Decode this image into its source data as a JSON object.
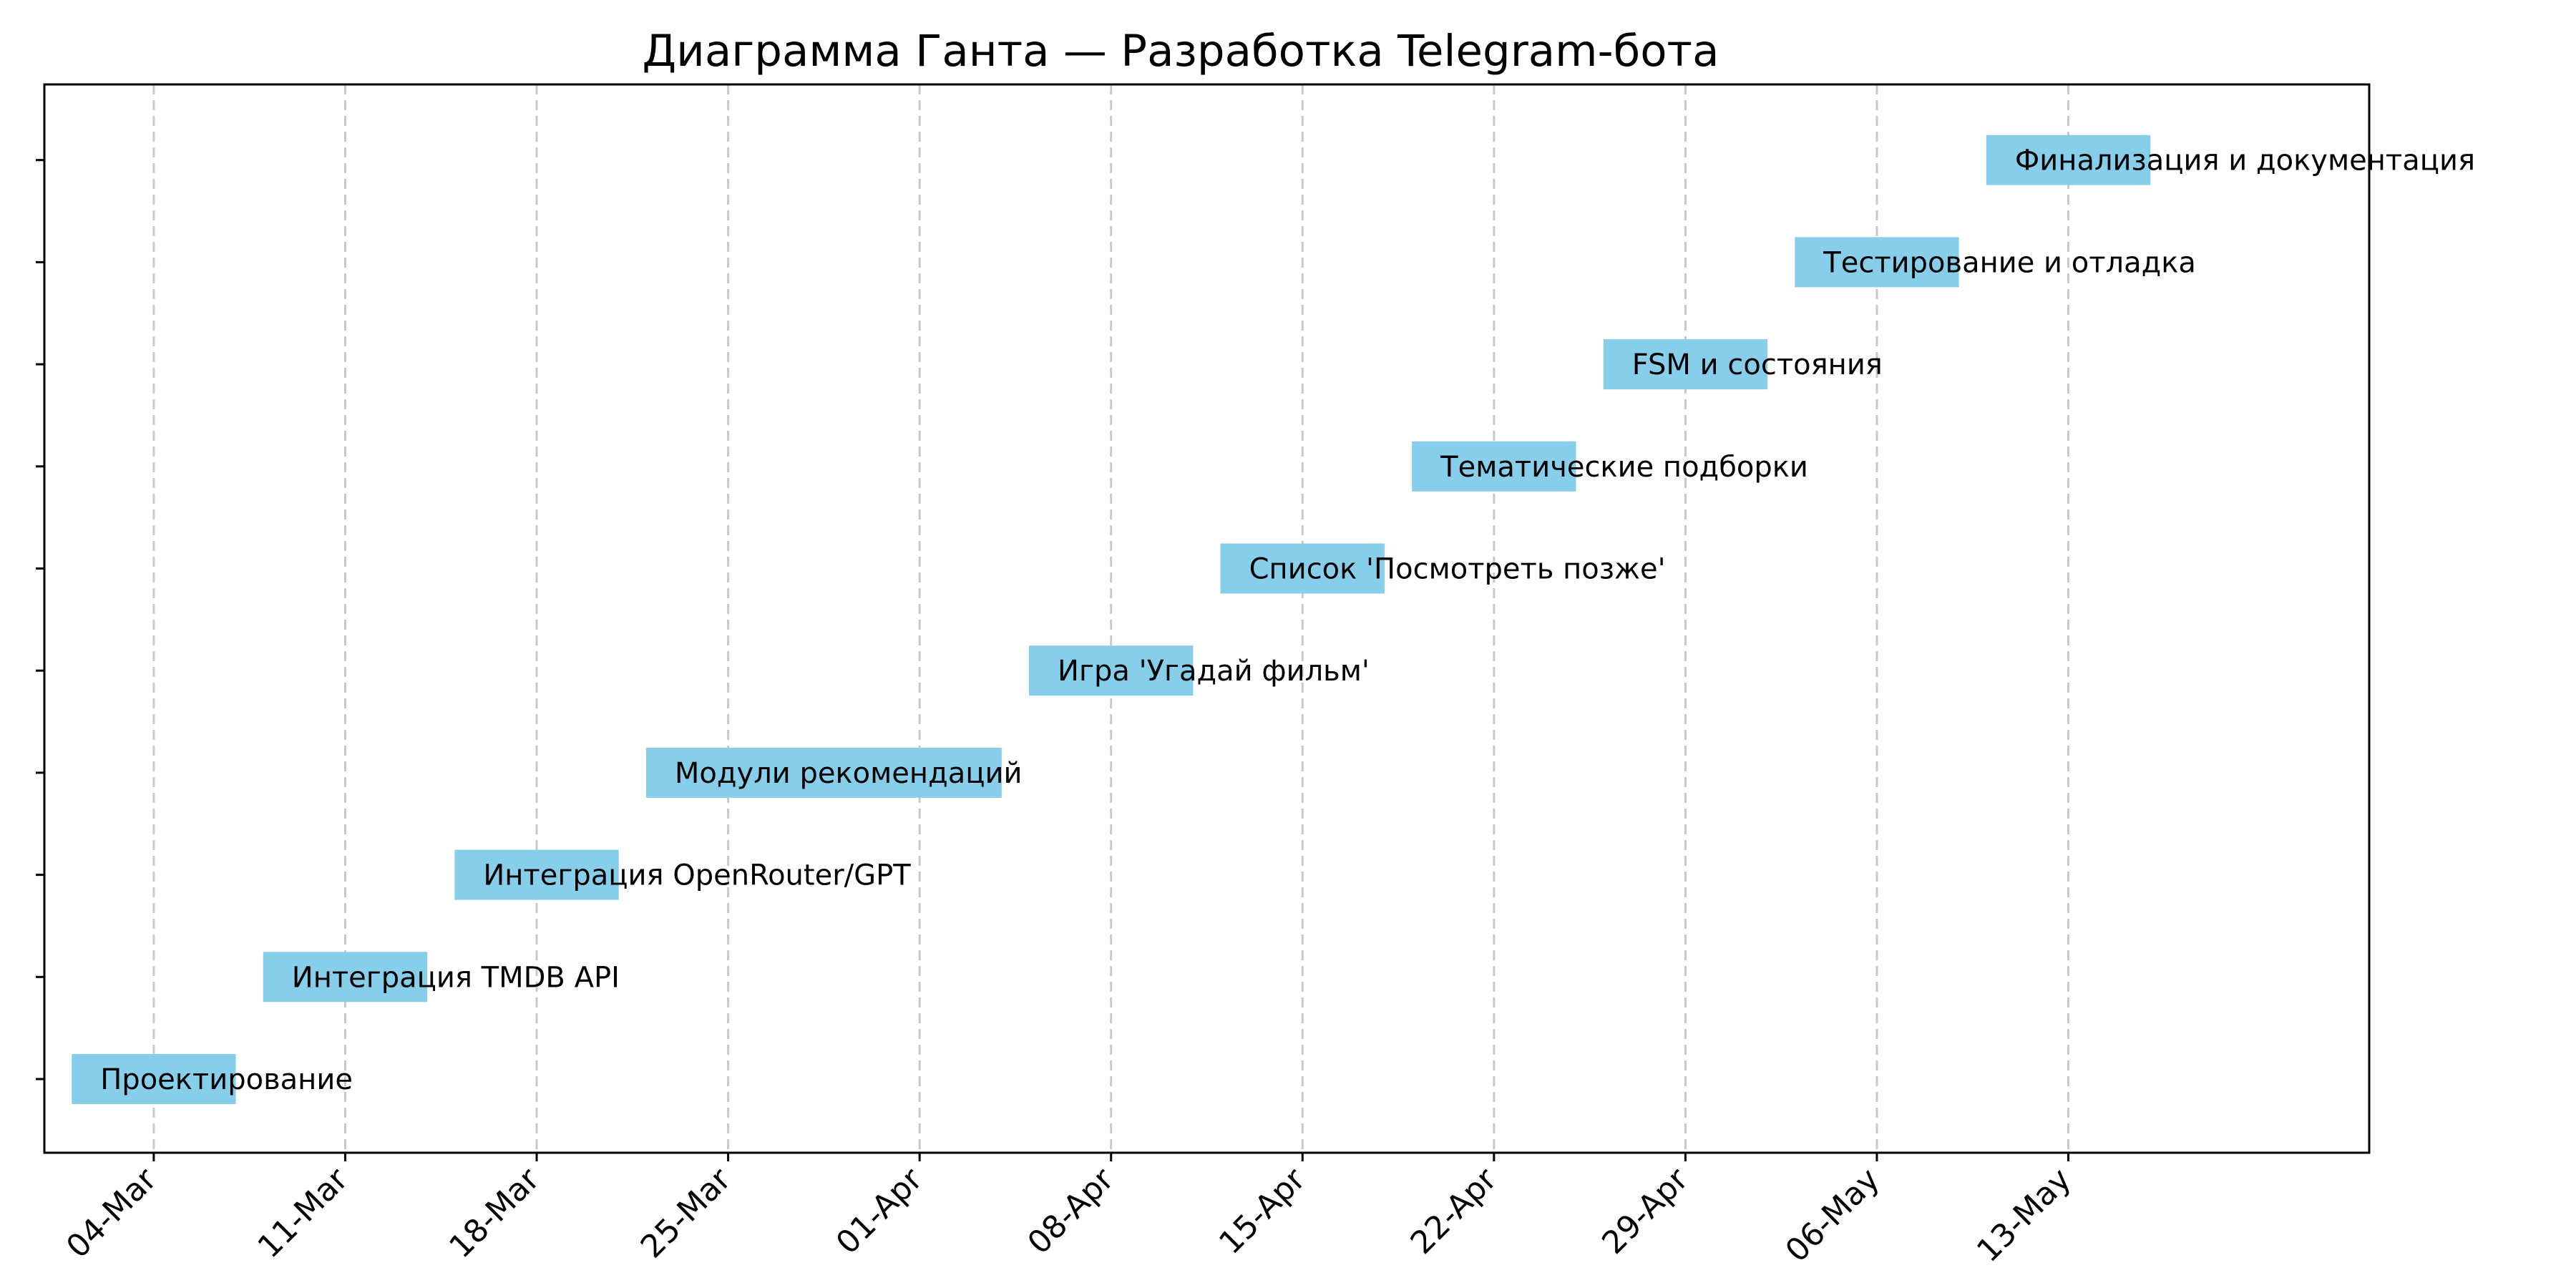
{
  "chart_data": {
    "type": "gantt",
    "title": "Диаграмма Ганта — Разработка Telegram-бота",
    "xlabel": "",
    "ylabel": "",
    "bar_color": "#87ceeb",
    "grid": "x-dashed",
    "x_range": [
      "2024-02-29",
      "2024-05-24"
    ],
    "x_ticks": [
      {
        "date": "2024-03-04",
        "label": "04-Mar"
      },
      {
        "date": "2024-03-11",
        "label": "11-Mar"
      },
      {
        "date": "2024-03-18",
        "label": "18-Mar"
      },
      {
        "date": "2024-03-25",
        "label": "25-Mar"
      },
      {
        "date": "2024-04-01",
        "label": "01-Apr"
      },
      {
        "date": "2024-04-08",
        "label": "08-Apr"
      },
      {
        "date": "2024-04-15",
        "label": "15-Apr"
      },
      {
        "date": "2024-04-22",
        "label": "22-Apr"
      },
      {
        "date": "2024-04-29",
        "label": "29-Apr"
      },
      {
        "date": "2024-05-06",
        "label": "06-May"
      },
      {
        "date": "2024-05-13",
        "label": "13-May"
      }
    ],
    "tasks": [
      {
        "name": "Проектирование",
        "start": "2024-03-01",
        "duration_days": 6
      },
      {
        "name": "Интеграция TMDB API",
        "start": "2024-03-08",
        "duration_days": 6
      },
      {
        "name": "Интеграция OpenRouter/GPT",
        "start": "2024-03-15",
        "duration_days": 6
      },
      {
        "name": "Модули рекомендаций",
        "start": "2024-03-22",
        "duration_days": 13
      },
      {
        "name": "Игра 'Угадай фильм'",
        "start": "2024-04-05",
        "duration_days": 6
      },
      {
        "name": "Список 'Посмотреть позже'",
        "start": "2024-04-12",
        "duration_days": 6
      },
      {
        "name": "Тематические подборки",
        "start": "2024-04-19",
        "duration_days": 6
      },
      {
        "name": "FSM и состояния",
        "start": "2024-04-26",
        "duration_days": 6
      },
      {
        "name": "Тестирование и отладка",
        "start": "2024-05-03",
        "duration_days": 6
      },
      {
        "name": "Финализация и документация",
        "start": "2024-05-10",
        "duration_days": 6
      }
    ]
  }
}
